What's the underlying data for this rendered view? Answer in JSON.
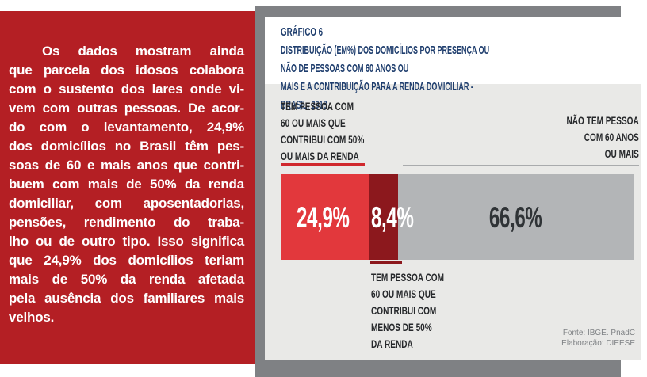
{
  "commentary": {
    "lines": [
      "Os dados mostram ainda",
      "que parcela dos idosos colabora",
      "com o sustento dos lares onde vi-",
      "vem com outras pessoas. De acor-",
      "do com o levantamento, 24,9%",
      "dos domicílios no Brasil têm pes-",
      "soas de 60 e mais anos que contri-",
      "buem com mais de 50% da renda",
      "domiciliar, com aposentadorias,",
      "pensões, rendimento do traba-",
      "lho ou de outro tipo. Isso significa",
      "que 24,9% dos domicílios teriam",
      "mais de 50% da renda afetada",
      "pela ausência dos familiares mais",
      "velhos."
    ]
  },
  "chart": {
    "number_label": "GRÁFICO 6",
    "title": "DISTRIBUIÇÃO (EM%) DOS DOMICÍLIOS POR PRESENÇA OU NÃO DE PESSOAS COM 60 ANOS OU\nMAIS E A CONTRIBUIÇÃO PARA A RENDA DOMICILIAR  - BRASIL, 2018",
    "label_contrib_50_plus": "TEM PESSOA COM\n60 OU MAIS QUE\nCONTRIBUI COM 50%\nOU MAIS DA RENDA",
    "label_no_person_60": "NÃO TEM PESSOA\nCOM 60 ANOS\nOU MAIS",
    "label_contrib_less_50": "TEM PESSOA COM\n60 OU MAIS QUE\nCONTRIBUI COM\nMENOS DE 50%\nDA RENDA",
    "source_line1": "Fonte: IBGE. PnadC",
    "source_line2": "Elaboração: DIEESE"
  },
  "chart_data": {
    "type": "bar",
    "subtype": "horizontal-100pct-stacked",
    "title": "DISTRIBUIÇÃO (EM%) DOS DOMICÍLIOS POR PRESENÇA OU NÃO DE PESSOAS COM 60 ANOS OU MAIS E A CONTRIBUIÇÃO PARA A RENDA DOMICILIAR - BRASIL, 2018",
    "unit": "%",
    "grid": false,
    "legend_position": "callout-labels",
    "segments": [
      {
        "label": "Tem pessoa com 60 ou mais que contribui com 50% ou mais da renda",
        "value": 24.9,
        "display": "24,9%",
        "color": "#e2383c",
        "text_color": "#ffffff"
      },
      {
        "label": "Tem pessoa com 60 ou mais que contribui com menos de 50% da renda",
        "value": 8.4,
        "display": "8,4%",
        "color": "#8c181d",
        "text_color": "#ffffff"
      },
      {
        "label": "Não tem pessoa com 60 anos ou mais",
        "value": 66.6,
        "display": "66,6%",
        "color": "#b3b5b7",
        "text_color": "#2f3336"
      }
    ]
  },
  "colors": {
    "panel_red": "#b41f24",
    "frame_gray": "#7f8184",
    "body_gray": "#e9e9e7",
    "title_navy": "#1e3d6d",
    "label_dark": "#26282b",
    "underline_red": "#d0282d",
    "underline_gray": "#a9abad",
    "mini_red": "#8c181d",
    "source_gray": "#7f8285"
  }
}
